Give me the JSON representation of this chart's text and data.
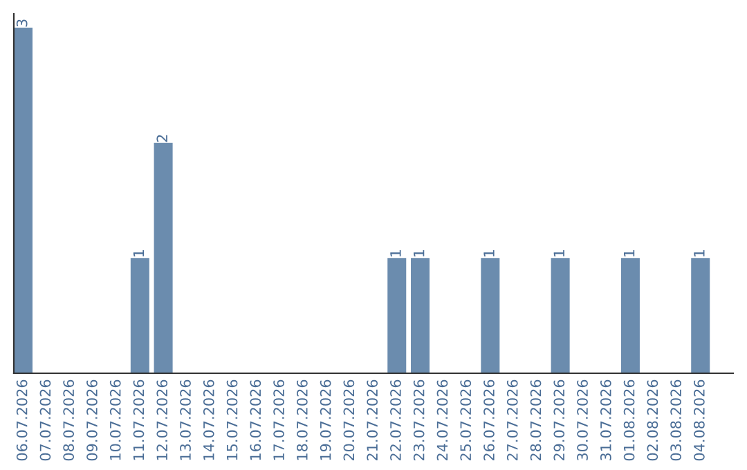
{
  "chart_data": {
    "type": "bar",
    "categories": [
      "06.07.2026",
      "07.07.2026",
      "08.07.2026",
      "09.07.2026",
      "10.07.2026",
      "11.07.2026",
      "12.07.2026",
      "13.07.2026",
      "14.07.2026",
      "15.07.2026",
      "16.07.2026",
      "17.07.2026",
      "18.07.2026",
      "19.07.2026",
      "20.07.2026",
      "21.07.2026",
      "22.07.2026",
      "23.07.2026",
      "24.07.2026",
      "25.07.2026",
      "26.07.2026",
      "27.07.2026",
      "28.07.2026",
      "29.07.2026",
      "30.07.2026",
      "31.07.2026",
      "01.08.2026",
      "02.08.2026",
      "03.08.2026",
      "04.08.2026"
    ],
    "values": [
      3,
      0,
      0,
      0,
      0,
      1,
      2,
      0,
      0,
      0,
      0,
      0,
      0,
      0,
      0,
      0,
      1,
      1,
      0,
      0,
      1,
      0,
      0,
      1,
      0,
      0,
      1,
      0,
      0,
      1
    ],
    "value_labels": [
      "3",
      null,
      null,
      null,
      null,
      "1",
      "2",
      null,
      null,
      null,
      null,
      null,
      null,
      null,
      null,
      null,
      "1",
      "1",
      null,
      null,
      "1",
      null,
      null,
      "1",
      null,
      null,
      "1",
      null,
      null,
      "1"
    ],
    "color": "#6b8cae",
    "tick_labels": "x"
  }
}
